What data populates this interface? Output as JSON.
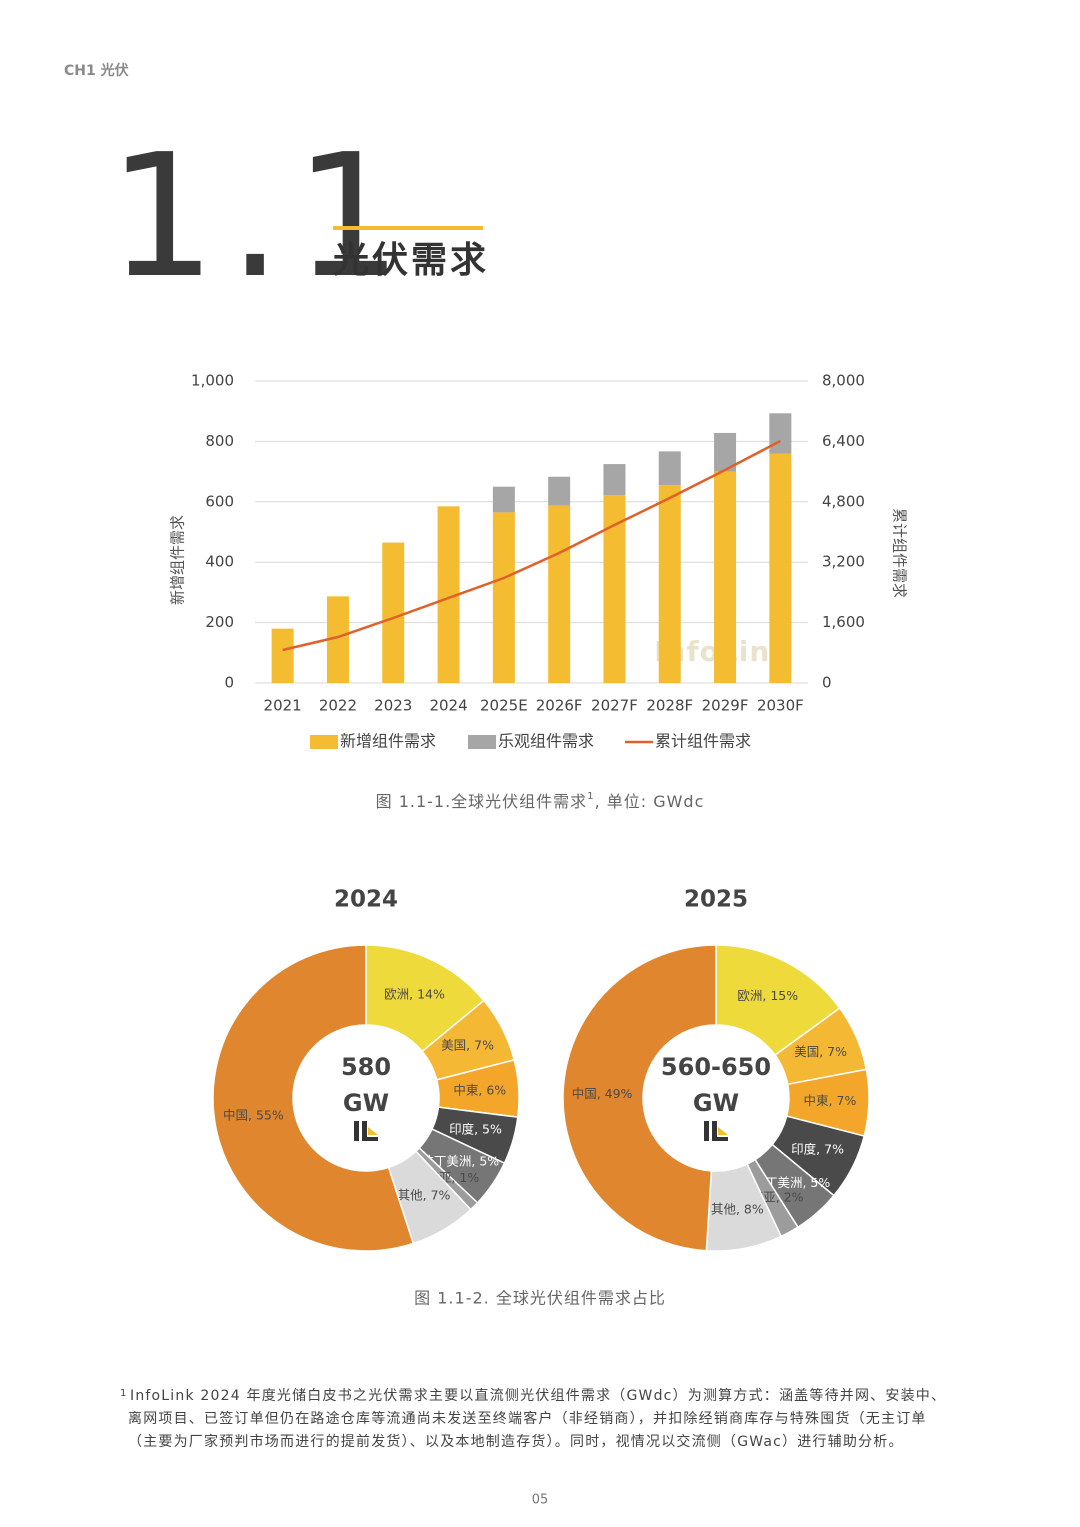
{
  "header": {
    "chapter": "CH1 光伏"
  },
  "section": {
    "number": "1.1",
    "title": "光伏需求"
  },
  "chart_data": [
    {
      "type": "bar",
      "categories": [
        "2021",
        "2022",
        "2023",
        "2024",
        "2025E",
        "2026F",
        "2027F",
        "2028F",
        "2029F",
        "2030F"
      ],
      "series": [
        {
          "name": "新增组件需求",
          "color": "#f4bc30",
          "values": [
            180,
            287,
            465,
            585,
            565,
            588,
            622,
            655,
            700,
            760
          ]
        },
        {
          "name": "乐观组件需求",
          "color": "#a6a6a6",
          "values": [
            null,
            null,
            null,
            null,
            85,
            95,
            103,
            112,
            128,
            133
          ]
        },
        {
          "name": "累计组件需求",
          "color": "#e0602a",
          "axis": "y2",
          "values": [
            874,
            1218,
            1722,
            2252,
            2781,
            3444,
            4185,
            4900,
            5642,
            6411
          ]
        }
      ],
      "stacked": true,
      "y_label": "新增组件需求",
      "y2_label": "累计组件需求",
      "ylim": [
        0,
        1000
      ],
      "yticks": [
        0,
        200,
        400,
        600,
        800,
        {
          "value": 1000,
          "label": "1,000"
        }
      ],
      "y2lim": [
        0,
        8000
      ],
      "y2ticks": [
        0,
        {
          "value": 1600,
          "label": "1,600"
        },
        {
          "value": 3200,
          "label": "3,200"
        },
        {
          "value": 4800,
          "label": "4,800"
        },
        {
          "value": 6400,
          "label": "6,400"
        },
        {
          "value": 8000,
          "label": "8,000"
        }
      ],
      "grid": true,
      "legend": "bottom",
      "watermark": "InfoLink",
      "caption": [
        "图 1.1-1.全球光伏组件需求",
        "1",
        ", 单位: GWdc"
      ]
    },
    {
      "type": "pie",
      "title": "2024",
      "values": [
        14,
        7,
        6,
        5,
        5,
        1,
        7,
        55
      ],
      "value_labels": [
        "欧洲, 14%",
        "美国, 7%",
        "中東, 6%",
        "印度, 5%",
        "拉丁美洲, 5%",
        "东南亚, 1%",
        "其他, 7%",
        "中国, 55%"
      ],
      "colors": [
        "#efda3b",
        "#f5b834",
        "#f4a62a",
        "#4a4a4a",
        "#767676",
        "#9c9c9c",
        "#dadada",
        "#e0862e"
      ],
      "center_text": [
        "580",
        "GW"
      ]
    },
    {
      "type": "pie",
      "title": "2025",
      "values": [
        15,
        7,
        7,
        7,
        5,
        2,
        8,
        49
      ],
      "value_labels": [
        "欧洲, 15%",
        "美国, 7%",
        "中東, 7%",
        "印度, 7%",
        "拉丁美洲, 5%",
        "东南亚, 2%",
        "其他, 8%",
        "中国, 49%"
      ],
      "colors": [
        "#efda3b",
        "#f5b834",
        "#f4a62a",
        "#4a4a4a",
        "#767676",
        "#9c9c9c",
        "#dadada",
        "#e0862e"
      ],
      "center_text": [
        "560-650",
        "GW"
      ]
    }
  ],
  "pie_caption": "图 1.1-2. 全球光伏组件需求占比",
  "footnote": {
    "marker": "1",
    "lines": [
      "InfoLink 2024 年度光储白皮书之光伏需求主要以直流侧光伏组件需求（GWdc）为测算方式：涵盖等待并网、安装中、",
      "离网项目、已签订单但仍在路途仓库等流通尚未发送至终端客户（非经销商），并扣除经销商库存与特殊囤货（无主订单",
      "（主要为厂家预判市场而进行的提前发货）、以及本地制造存货）。同时，视情况以交流侧（GWac）进行辅助分析。"
    ]
  },
  "page_number": "05"
}
